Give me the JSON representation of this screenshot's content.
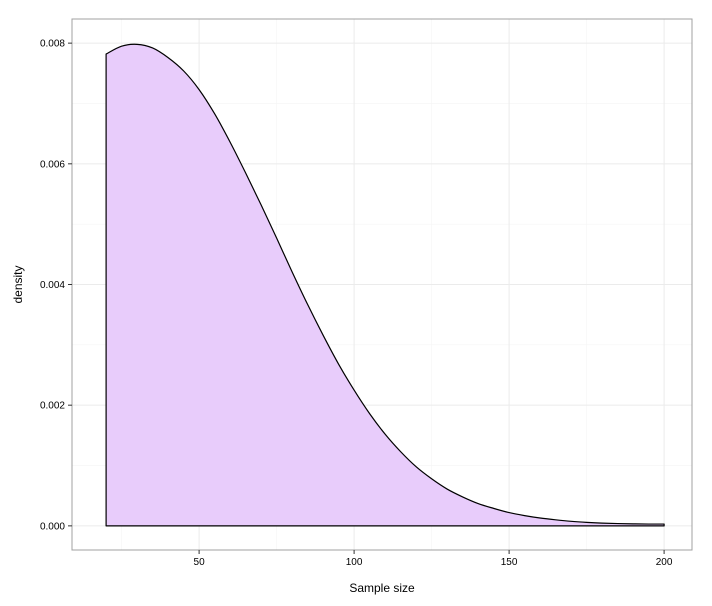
{
  "chart_data": {
    "type": "area",
    "title": "",
    "xlabel": "Sample size",
    "ylabel": "density",
    "xlim": [
      9,
      209
    ],
    "ylim": [
      -0.0004,
      0.0084
    ],
    "x_ticks": [
      50,
      100,
      150,
      200
    ],
    "y_ticks": [
      0.0,
      0.002,
      0.004,
      0.006,
      0.008
    ],
    "x_tick_labels": [
      "50",
      "100",
      "150",
      "200"
    ],
    "y_tick_labels": [
      "0.000",
      "0.002",
      "0.004",
      "0.006",
      "0.008"
    ],
    "grid": true,
    "legend": "none",
    "colors": {
      "fill": "#E8CCFB",
      "line": "#000000",
      "grid_major": "#EBEBEB",
      "grid_minor": "#F5F5F5",
      "panel_border": "#A0A0A0"
    },
    "series": [
      {
        "x": [
          20,
          25,
          30,
          35,
          40,
          45,
          50,
          55,
          60,
          65,
          70,
          75,
          80,
          85,
          90,
          95,
          100,
          105,
          110,
          115,
          120,
          125,
          130,
          135,
          140,
          145,
          150,
          155,
          160,
          165,
          170,
          175,
          180,
          185,
          190,
          195,
          200
        ],
        "y": [
          0.00782,
          0.00795,
          0.00798,
          0.00792,
          0.00776,
          0.00754,
          0.00723,
          0.00683,
          0.00636,
          0.00585,
          0.00532,
          0.00477,
          0.00421,
          0.00367,
          0.00316,
          0.00268,
          0.00225,
          0.00186,
          0.00152,
          0.00123,
          0.00098,
          0.00078,
          0.00061,
          0.00048,
          0.00037,
          0.00029,
          0.00022,
          0.00017,
          0.00013,
          0.0001,
          7.5e-05,
          5.8e-05,
          4.6e-05,
          3.8e-05,
          3.3e-05,
          3e-05,
          3e-05
        ]
      }
    ]
  }
}
